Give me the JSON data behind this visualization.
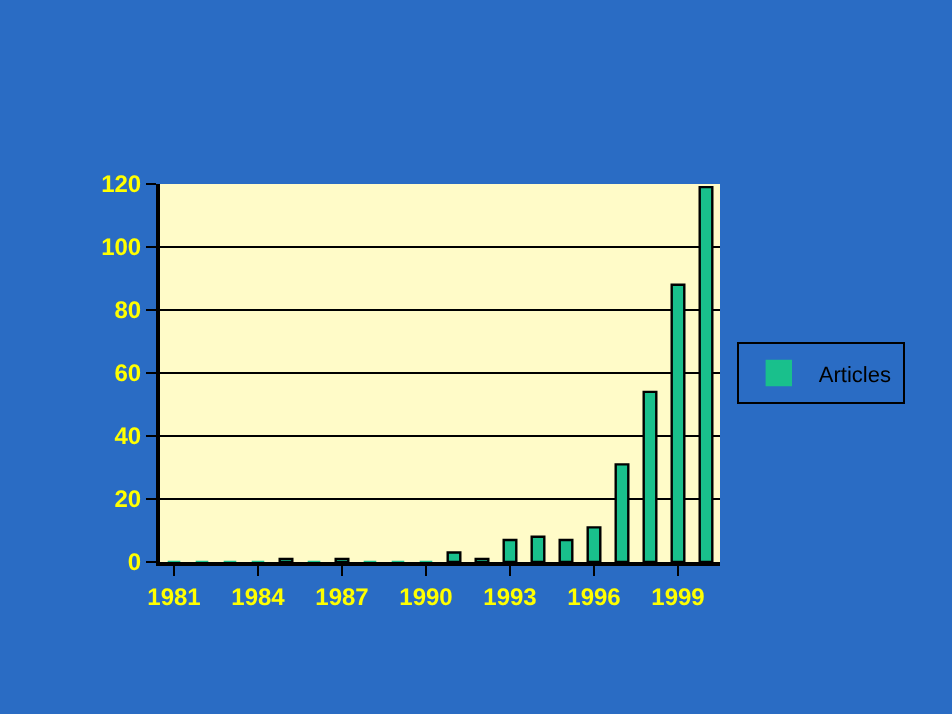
{
  "chart_data": {
    "type": "bar",
    "categories": [
      "1981",
      null,
      null,
      "1984",
      null,
      null,
      "1987",
      null,
      null,
      "1990",
      null,
      null,
      "1993",
      null,
      null,
      "1996",
      null,
      null,
      "1999",
      null
    ],
    "series": [
      {
        "name": "Articles",
        "color": "#19c08c",
        "values": [
          0,
          0,
          0,
          0,
          1,
          0,
          1,
          0,
          0,
          0,
          3,
          1,
          7,
          8,
          7,
          11,
          31,
          54,
          88,
          119
        ]
      }
    ],
    "ylim": [
      0,
      120
    ],
    "yticks": [
      0,
      20,
      40,
      60,
      80,
      100,
      120
    ],
    "grid": "y",
    "legend": "right"
  }
}
